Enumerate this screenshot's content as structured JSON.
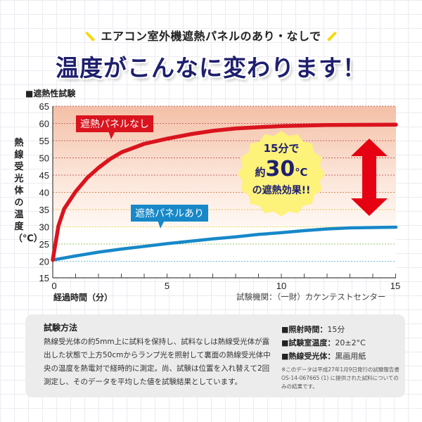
{
  "header": {
    "subtitle": "エアコン室外機遮熱パネルのあり・なしで",
    "headline": "温度がこんなに変わります！",
    "spark_color": "#f5d90a"
  },
  "section_label": "■遮熱性試験",
  "chart_data": {
    "type": "line",
    "title": "遮熱性試験",
    "xlabel": "経過時間（分）",
    "ylabel": "熱線受光体の温度（℃）",
    "xlim": [
      0,
      15
    ],
    "ylim": [
      15,
      65
    ],
    "x_ticks": [
      0,
      5,
      10,
      15
    ],
    "x_minor_ticks": [
      1,
      2,
      3,
      4,
      6,
      7,
      8,
      9,
      11,
      12,
      13,
      14
    ],
    "y_ticks": [
      15,
      20,
      25,
      30,
      35,
      40,
      45,
      50,
      55,
      60,
      65
    ],
    "grid": "horizontal dotted",
    "background": "gradient from salmon (top) to white (~30℃)",
    "series": [
      {
        "name": "遮熱パネルなし",
        "color": "#d9141e",
        "x": [
          0,
          0.25,
          0.5,
          1,
          1.5,
          2,
          2.5,
          3,
          4,
          5,
          6,
          7,
          8,
          10,
          12,
          15
        ],
        "values": [
          20,
          30,
          35,
          40,
          44,
          47,
          49.5,
          51.5,
          54,
          55.5,
          56.8,
          57.8,
          58.5,
          59.2,
          59.5,
          59.6
        ]
      },
      {
        "name": "遮熱パネルあり",
        "color": "#1788c8",
        "x": [
          0,
          1,
          2,
          3,
          4,
          5,
          6,
          7,
          8,
          9,
          10,
          11,
          12,
          13,
          14,
          15
        ],
        "values": [
          20,
          21.2,
          22.3,
          23.2,
          24,
          24.8,
          25.5,
          26.2,
          26.8,
          27.5,
          28,
          28.6,
          29.1,
          29.4,
          29.5,
          29.6
        ]
      }
    ],
    "annotations": [
      {
        "type": "callout",
        "text": "遮熱パネルなし",
        "color": "#d9141e"
      },
      {
        "type": "callout",
        "text": "遮熱パネルあり",
        "color": "#1788c8"
      },
      {
        "type": "badge",
        "text": "15分で 約30℃ の遮熱効果!!"
      },
      {
        "type": "double-arrow",
        "from": 59.6,
        "to": 29.6,
        "color": "#e50012"
      }
    ],
    "source": "試験機関：（一財）カケンテストセンター"
  },
  "badge": {
    "line1": "15分で",
    "line2_prefix": "約",
    "line2_number": "30",
    "line2_unit": "℃",
    "line3": "の遮熱効果!!"
  },
  "method": {
    "title": "試験方法",
    "body": "熱線受光体の約5mm上に試料を保持し、試料なしは熱線受光体が露出した状態で上方50cmからランプ光を照射して裏面の熱線受光体中央の温度を熱電対で経時的に測定。尚、試験は位置を入れ替えて2回測定し、そのデータを平均した値を試験結果としています。"
  },
  "specs": [
    {
      "label": "■照射時間：",
      "value": "15分"
    },
    {
      "label": "■試験室温度：",
      "value": "20±2°C"
    },
    {
      "label": "■熱線受光体：",
      "value": "黒画用紙"
    }
  ],
  "note": "※このデータは平成27年1月9日発行の試験報告書OS-14-067665 (1) に提供された試料についてのみの結果です。"
}
